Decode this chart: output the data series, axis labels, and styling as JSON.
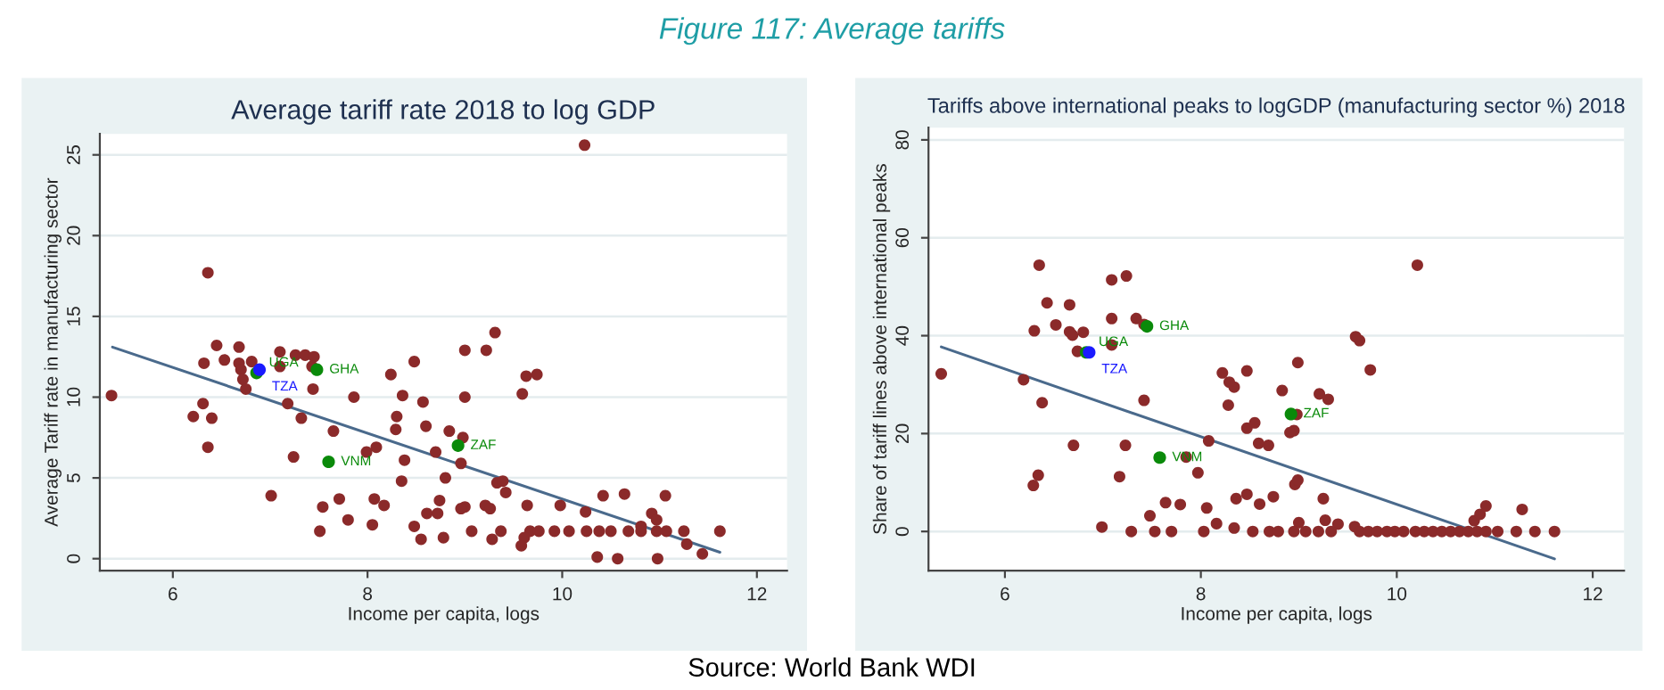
{
  "chart_data": [
    {
      "type": "scatter",
      "title": "Average tariff rate 2018 to log GDP",
      "xlabel": "Income per capita, logs",
      "ylabel": "Average Tariff rate in manufacturing sector",
      "annotations": [
        "Figure 117: Average tariffs"
      ],
      "xlim": [
        5.25,
        12.31
      ],
      "ylim": [
        -0.74,
        26.3
      ],
      "xticks": [
        6,
        8,
        10,
        12
      ],
      "yticks": [
        0,
        5,
        10,
        15,
        20,
        25
      ],
      "grid": "y",
      "legend": false,
      "series": [
        {
          "type": "scatter",
          "marker": "circle",
          "color": "#8b2a2a",
          "x": [
            10.23,
            6.36,
            6.45,
            6.68,
            6.53,
            6.32,
            6.68,
            6.81,
            6.7,
            6.72,
            6.75,
            7.1,
            7.1,
            7.26,
            7.36,
            7.45,
            7.43,
            7.44,
            8.24,
            8.48,
            9.0,
            9.22,
            9.31,
            9.63,
            9.74,
            9.59,
            9.0,
            7.86,
            8.36,
            8.57,
            7.18,
            5.37,
            6.31,
            6.21,
            6.4,
            7.32,
            8.3,
            8.29,
            8.6,
            8.84,
            7.65,
            8.98,
            6.36,
            8.09,
            7.99,
            8.7,
            7.24,
            8.38,
            8.96,
            8.8,
            8.35,
            9.33,
            9.39,
            9.42,
            7.01,
            7.71,
            8.07,
            8.74,
            9.98,
            9.64,
            9.21,
            9.26,
            9.0,
            8.96,
            8.17,
            7.54,
            8.61,
            8.72,
            7.8,
            8.05,
            8.48,
            7.51,
            9.07,
            9.37,
            8.78,
            8.55,
            9.28,
            10.24,
            10.42,
            10.64,
            11.06,
            10.92,
            10.97,
            10.81,
            9.67,
            9.76,
            9.92,
            10.07,
            10.25,
            10.38,
            10.5,
            10.68,
            10.81,
            10.97,
            11.07,
            11.25,
            11.62,
            9.61,
            9.58,
            10.36,
            10.57,
            10.98,
            11.28,
            11.44
          ],
          "values": [
            25.6,
            17.7,
            13.2,
            13.1,
            12.3,
            12.1,
            12.1,
            12.2,
            11.7,
            11.1,
            10.5,
            12.8,
            11.9,
            12.6,
            12.6,
            12.5,
            11.9,
            10.5,
            11.4,
            12.2,
            12.9,
            12.9,
            14.0,
            11.3,
            11.4,
            10.2,
            10.0,
            10.0,
            10.1,
            9.7,
            9.6,
            10.1,
            9.6,
            8.8,
            8.7,
            8.7,
            8.8,
            8.0,
            8.2,
            7.9,
            7.9,
            7.5,
            6.9,
            6.9,
            6.6,
            6.6,
            6.3,
            6.1,
            5.9,
            5.0,
            4.8,
            4.7,
            4.8,
            4.1,
            3.9,
            3.7,
            3.7,
            3.6,
            3.3,
            3.3,
            3.3,
            3.1,
            3.2,
            3.1,
            3.3,
            3.2,
            2.8,
            2.8,
            2.4,
            2.1,
            2.0,
            1.7,
            1.7,
            1.7,
            1.3,
            1.2,
            1.2,
            2.9,
            3.9,
            4.0,
            3.9,
            2.8,
            2.4,
            2.0,
            1.7,
            1.7,
            1.7,
            1.7,
            1.7,
            1.7,
            1.7,
            1.7,
            1.7,
            1.7,
            1.7,
            1.7,
            1.7,
            1.3,
            0.8,
            0.1,
            0.0,
            0.0,
            0.9,
            0.3
          ]
        },
        {
          "type": "scatter",
          "marker": "circle",
          "x": [
            6.86,
            6.89,
            7.48,
            7.6,
            8.93
          ],
          "values": [
            11.5,
            11.7,
            11.7,
            6.0,
            7.0
          ],
          "colors": [
            "#0a8a0a",
            "#1a1aff",
            "#0a8a0a",
            "#0a8a0a",
            "#0a8a0a"
          ],
          "value_labels": [
            "UGA",
            "TZA",
            "GHA",
            "VNM",
            "ZAF"
          ]
        },
        {
          "type": "line",
          "color": "#4a6a8c",
          "x": [
            5.38,
            11.62
          ],
          "values": [
            13.1,
            0.4
          ]
        }
      ]
    },
    {
      "type": "scatter",
      "title": "Tariffs above international peaks to logGDP (manufacturing sector %) 2018",
      "xlabel": "Income per capita, logs",
      "ylabel": "Share of tariff lines above international peaks",
      "annotations": [
        "Source: World Bank WDI"
      ],
      "xlim": [
        5.22,
        12.32
      ],
      "ylim": [
        -8.0,
        82.5
      ],
      "xticks": [
        6,
        8,
        10,
        12
      ],
      "yticks": [
        0,
        20,
        40,
        60,
        80
      ],
      "grid": "y",
      "legend": false,
      "series": [
        {
          "type": "scatter",
          "marker": "circle",
          "color": "#8b2a2a",
          "x": [
            10.21,
            6.35,
            7.09,
            7.24,
            6.43,
            6.66,
            6.52,
            6.3,
            6.66,
            6.8,
            7.09,
            7.34,
            7.42,
            6.69,
            7.09,
            6.74,
            5.35,
            6.19,
            6.38,
            7.42,
            8.98,
            9.62,
            9.58,
            9.73,
            8.99,
            8.47,
            8.22,
            8.34,
            8.29,
            9.21,
            9.3,
            8.83,
            8.28,
            8.47,
            8.55,
            8.95,
            8.91,
            8.59,
            8.69,
            7.23,
            6.7,
            8.08,
            7.85,
            7.97,
            6.34,
            7.17,
            8.96,
            8.99,
            6.29,
            8.36,
            8.47,
            8.74,
            9.25,
            8.6,
            7.79,
            7.64,
            8.06,
            7.48,
            9.0,
            9.27,
            10.79,
            10.85,
            10.91,
            11.28,
            9.4,
            9.57,
            8.16,
            8.34,
            6.99,
            7.29,
            7.53,
            7.7,
            8.03,
            8.53,
            8.7,
            8.79,
            8.95,
            9.07,
            9.2,
            9.33,
            9.62,
            9.71,
            9.8,
            9.9,
            9.98,
            10.07,
            10.19,
            10.28,
            10.37,
            10.46,
            10.55,
            10.64,
            10.73,
            10.82,
            10.91,
            11.03,
            11.22,
            11.41,
            11.61
          ],
          "values": [
            54.4,
            54.4,
            51.4,
            52.2,
            46.7,
            46.3,
            42.2,
            41.0,
            40.8,
            40.7,
            43.5,
            43.5,
            42.3,
            40.1,
            38.1,
            36.8,
            32.2,
            31.0,
            26.3,
            26.8,
            23.9,
            39.0,
            39.8,
            33.0,
            34.5,
            32.8,
            32.4,
            29.5,
            30.5,
            28.1,
            27.0,
            28.8,
            25.8,
            21.1,
            22.2,
            20.6,
            20.2,
            18.0,
            17.6,
            17.6,
            17.6,
            18.5,
            15.2,
            12.0,
            11.5,
            11.2,
            9.6,
            10.5,
            9.4,
            6.7,
            7.6,
            7.1,
            6.7,
            5.6,
            5.5,
            5.9,
            4.8,
            3.2,
            1.8,
            2.3,
            2.2,
            3.5,
            5.2,
            4.5,
            1.5,
            1.0,
            1.6,
            0.7,
            0.9,
            0,
            0,
            0,
            0,
            0,
            0,
            0,
            0,
            0,
            0,
            0,
            0,
            0,
            0,
            0,
            0,
            0,
            0,
            0,
            0,
            0,
            0,
            0,
            0,
            0,
            0,
            0,
            0,
            0,
            0
          ]
        },
        {
          "type": "scatter",
          "marker": "circle",
          "x": [
            6.83,
            6.86,
            7.45,
            7.58,
            8.92
          ],
          "values": [
            36.6,
            36.6,
            41.9,
            15.1,
            24.0
          ],
          "colors": [
            "#0a8a0a",
            "#1a1aff",
            "#0a8a0a",
            "#0a8a0a",
            "#0a8a0a"
          ],
          "value_labels": [
            "UGA",
            "TZA",
            "GHA",
            "VNM",
            "ZAF"
          ]
        },
        {
          "type": "line",
          "color": "#4a6a8c",
          "x": [
            5.35,
            11.61
          ],
          "values": [
            37.7,
            -5.6
          ]
        }
      ]
    }
  ]
}
